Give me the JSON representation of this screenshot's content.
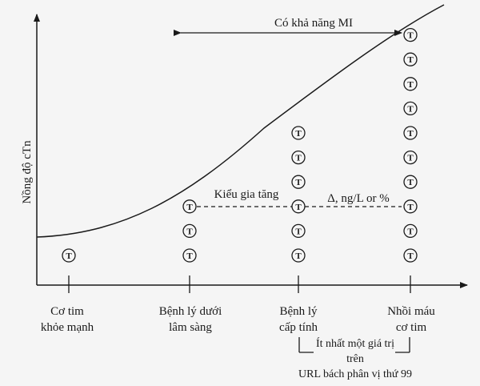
{
  "y_axis_label": "Nồng độ cTn",
  "possible_mi_label": "Có khả năng MI",
  "rise_pattern_label": "Kiểu gia tăng",
  "delta_label": "Δ, ng/L or %",
  "marker_symbol": "T",
  "categories": [
    {
      "line1": "Cơ tim",
      "line2": "khỏe mạnh"
    },
    {
      "line1": "Bệnh lý dưới",
      "line2": "lâm sàng"
    },
    {
      "line1": "Bệnh lý",
      "line2": "cấp tính"
    },
    {
      "line1": "Nhồi máu",
      "line2": "cơ tim"
    }
  ],
  "threshold_note": {
    "line1": "Ít nhất một giá trị",
    "line2": "trên",
    "line3": "URL bách phân vị thứ 99"
  },
  "marker_counts": [
    1,
    3,
    6,
    10
  ]
}
